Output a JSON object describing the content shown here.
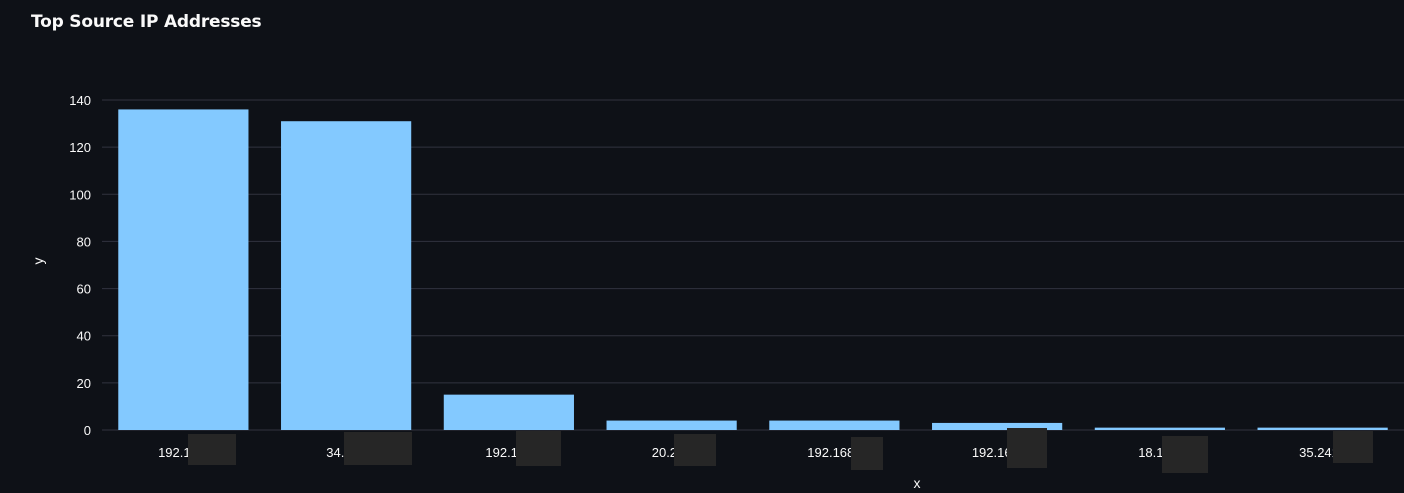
{
  "chart_data": {
    "type": "bar",
    "title": "Top Source IP Addresses",
    "xlabel": "x",
    "ylabel": "y",
    "categories": [
      "192.168.",
      "34.139",
      "192.168",
      "20.207",
      "192.168.:",
      "192.168.",
      "18.155.",
      "35.241.:"
    ],
    "values": [
      136,
      131,
      15,
      4,
      4,
      3,
      1,
      1
    ],
    "ylim": [
      0,
      140
    ],
    "yticks": [
      0,
      20,
      40,
      60,
      80,
      100,
      120,
      140
    ],
    "grid": true,
    "bar_color": "#83c9ff",
    "grid_color": "#31333f",
    "background": "#0e1117"
  }
}
